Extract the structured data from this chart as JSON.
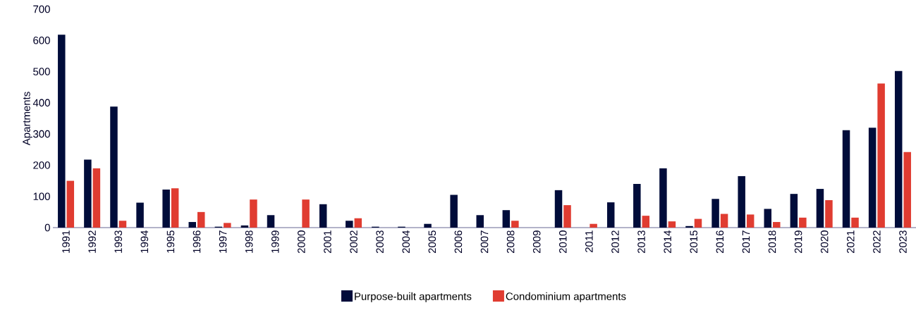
{
  "chart_data": {
    "type": "bar",
    "ylabel": "Apartments",
    "categories": [
      "1991",
      "1992",
      "1993",
      "1994",
      "1995",
      "1996",
      "1997",
      "1998",
      "1999",
      "2000",
      "2001",
      "2002",
      "2003",
      "2004",
      "2005",
      "2006",
      "2007",
      "2008",
      "2009",
      "2010",
      "2011",
      "2012",
      "2013",
      "2014",
      "2015",
      "2016",
      "2017",
      "2018",
      "2019",
      "2020",
      "2021",
      "2022",
      "2023"
    ],
    "series": [
      {
        "name": "Purpose-built apartments",
        "color": "#000c3a",
        "values": [
          618,
          218,
          388,
          80,
          122,
          18,
          3,
          7,
          40,
          0,
          75,
          22,
          3,
          3,
          12,
          105,
          40,
          56,
          0,
          120,
          0,
          81,
          140,
          190,
          5,
          92,
          165,
          60,
          108,
          124,
          312,
          320,
          502
        ]
      },
      {
        "name": "Condominium apartments",
        "color": "#e03c31",
        "values": [
          150,
          190,
          22,
          0,
          126,
          50,
          15,
          90,
          0,
          90,
          0,
          30,
          0,
          0,
          0,
          0,
          0,
          22,
          0,
          72,
          12,
          0,
          38,
          20,
          28,
          44,
          42,
          18,
          32,
          88,
          32,
          462,
          242
        ]
      }
    ],
    "ylim": [
      0,
      700
    ],
    "yticks": [
      0,
      100,
      200,
      300,
      400,
      500,
      600,
      700
    ],
    "grid": false,
    "legend": "bottom"
  }
}
